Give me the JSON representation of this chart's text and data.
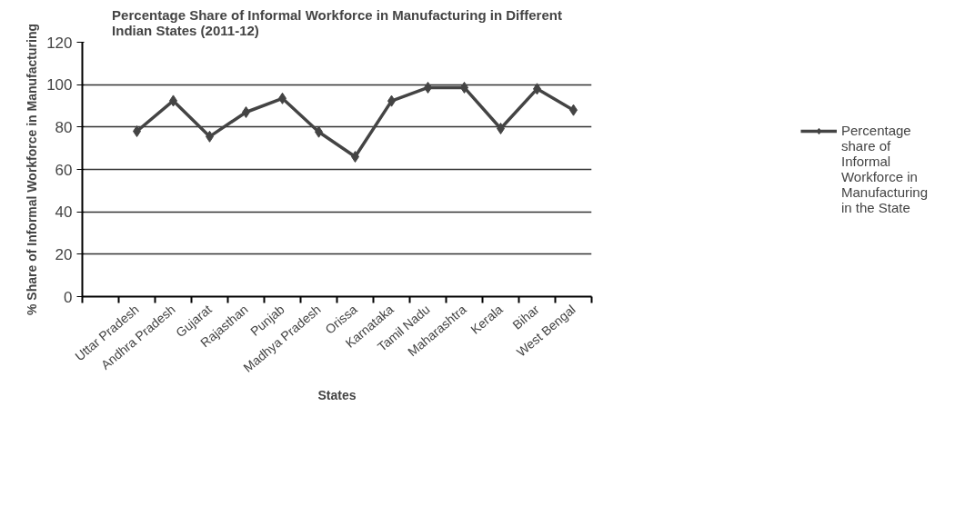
{
  "chart_data": {
    "type": "line",
    "title": "Percentage Share of Informal Workforce in Manufacturing in Different Indian States (2011-12)",
    "xlabel": "States",
    "ylabel": "% Share of Informal Workforce in Manufacturing",
    "categories": [
      null,
      "Uttar Pradesh",
      "Andhra Pradesh",
      "Gujarat",
      "Rajasthan",
      "Punjab",
      "Madhya Pradesh",
      "Orissa",
      "Karnataka",
      "Tamil Nadu",
      "Maharashtra",
      "Kerala",
      "Bihar",
      "West Bengal"
    ],
    "series": [
      {
        "name": "Percentage share of Informal Workforce in Manufacturing in the State",
        "color": "#444444",
        "values": [
          null,
          78,
          92.4,
          75.5,
          87,
          93.5,
          77.7,
          66,
          92.3,
          98.6,
          98.6,
          79.3,
          98,
          88
        ]
      }
    ],
    "ylim": [
      0,
      120
    ],
    "yticks": [
      0,
      20,
      40,
      60,
      80,
      100,
      120
    ],
    "grid": "y",
    "legend": "right",
    "marker": "diamond",
    "line_style": "solid"
  }
}
